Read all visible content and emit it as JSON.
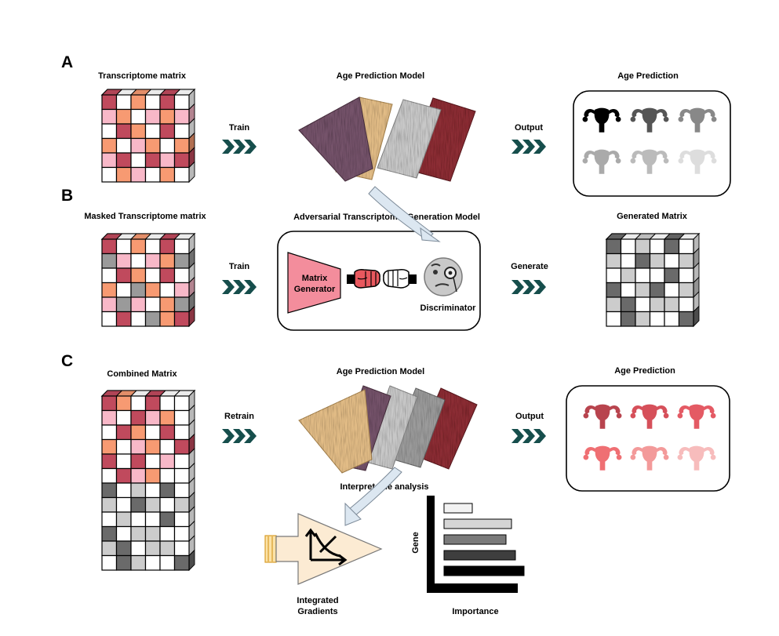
{
  "panels": {
    "a": {
      "letter": "A",
      "input_title": "Transcriptome matrix",
      "model_title": "Age Prediction Model",
      "output_title": "Age Prediction",
      "train_label": "Train",
      "output_label": "Output"
    },
    "b": {
      "letter": "B",
      "input_title": "Masked Transcriptome matrix",
      "model_title": "Adversarial Transcriptomic Generation Model",
      "output_title": "Generated Matrix",
      "train_label": "Train",
      "generate_label": "Generate",
      "generator_label_line1": "Matrix",
      "generator_label_line2": "Generator",
      "discriminator_label": "Discriminator"
    },
    "c": {
      "letter": "C",
      "input_title": "Combined Matrix",
      "model_title": "Age Prediction Model",
      "output_title": "Age Prediction",
      "retrain_label": "Retrain",
      "output_label": "Output",
      "interpretable_label": "Interpretable analysis",
      "ig_label_line1": "Integrated",
      "ig_label_line2": "Gradients",
      "gene_axis": "Gene",
      "importance_axis": "Importance"
    }
  },
  "icons": {
    "uterus": "uterus-icon",
    "fist": "fist-icon",
    "monocle_face": "monocle-face-icon",
    "chevrons": "triple-chevron-icon",
    "curve_chart": "decreasing-curve-icon"
  },
  "colors": {
    "dark_red": "#c04a5d",
    "salmon": "#f79a72",
    "pink": "#f8b8c8",
    "white": "#ffffff",
    "grey_dark": "#6a6a6a",
    "grey_mid": "#9a9a9a",
    "grey_light": "#cccccc",
    "chevron_teal": "#164e4c",
    "purple_layer": "#75536a",
    "tan_layer": "#e2bc86",
    "silver_layer": "#c8c8c8",
    "maroon_layer": "#8c2f35",
    "grey_layer": "#9b9b9b",
    "generator_pink": "#f38d9c",
    "ig_cream": "#fcebd3",
    "arrow_blue": "#dce7f1"
  },
  "matrices": {
    "a": [
      [
        "r",
        "w",
        "s",
        "w",
        "r",
        "w"
      ],
      [
        "p",
        "s",
        "w",
        "p",
        "s",
        "p"
      ],
      [
        "w",
        "r",
        "s",
        "w",
        "r",
        "w"
      ],
      [
        "s",
        "w",
        "p",
        "s",
        "w",
        "s"
      ],
      [
        "p",
        "r",
        "w",
        "r",
        "p",
        "r"
      ],
      [
        "w",
        "s",
        "p",
        "w",
        "s",
        "w"
      ]
    ],
    "b": [
      [
        "r",
        "w",
        "s",
        "w",
        "r",
        "w"
      ],
      [
        "g",
        "p",
        "w",
        "p",
        "s",
        "g"
      ],
      [
        "w",
        "r",
        "s",
        "w",
        "r",
        "w"
      ],
      [
        "s",
        "w",
        "g",
        "s",
        "w",
        "p"
      ],
      [
        "p",
        "g",
        "p",
        "w",
        "s",
        "g"
      ],
      [
        "w",
        "r",
        "w",
        "g",
        "s",
        "r"
      ]
    ],
    "gen": [
      [
        "d",
        "w",
        "l",
        "w",
        "d",
        "w"
      ],
      [
        "l",
        "w",
        "d",
        "l",
        "w",
        "l"
      ],
      [
        "w",
        "l",
        "w",
        "w",
        "d",
        "w"
      ],
      [
        "d",
        "w",
        "l",
        "d",
        "w",
        "l"
      ],
      [
        "l",
        "d",
        "w",
        "l",
        "l",
        "w"
      ],
      [
        "w",
        "d",
        "l",
        "w",
        "w",
        "d"
      ]
    ],
    "c": [
      [
        "r",
        "s",
        "w",
        "r",
        "w",
        "w"
      ],
      [
        "p",
        "w",
        "r",
        "p",
        "s",
        "w"
      ],
      [
        "w",
        "r",
        "s",
        "w",
        "r",
        "w"
      ],
      [
        "s",
        "w",
        "p",
        "s",
        "w",
        "r"
      ],
      [
        "r",
        "w",
        "r",
        "w",
        "p",
        "w"
      ],
      [
        "w",
        "r",
        "p",
        "s",
        "w",
        "w"
      ],
      [
        "d",
        "w",
        "l",
        "w",
        "d",
        "w"
      ],
      [
        "l",
        "w",
        "d",
        "l",
        "w",
        "l"
      ],
      [
        "w",
        "l",
        "w",
        "w",
        "d",
        "w"
      ],
      [
        "d",
        "w",
        "l",
        "l",
        "w",
        "w"
      ],
      [
        "l",
        "d",
        "w",
        "l",
        "l",
        "w"
      ],
      [
        "w",
        "d",
        "l",
        "w",
        "w",
        "d"
      ]
    ]
  },
  "uterus_colors": {
    "a": [
      "#000000",
      "#555555",
      "#888888",
      "#aaaaaa",
      "#bbbbbb",
      "#dddddd"
    ],
    "c": [
      "#b8444e",
      "#d6505a",
      "#e45a64",
      "#ef6f73",
      "#f39a9a",
      "#f7bcbc"
    ]
  },
  "importance_bars": [
    {
      "fill": "#f2f2f2",
      "value": 0.3
    },
    {
      "fill": "#d5d5d5",
      "value": 0.72
    },
    {
      "fill": "#7a7a7a",
      "value": 0.66
    },
    {
      "fill": "#3e3e3e",
      "value": 0.76
    },
    {
      "fill": "#000000",
      "value": 0.85
    }
  ]
}
